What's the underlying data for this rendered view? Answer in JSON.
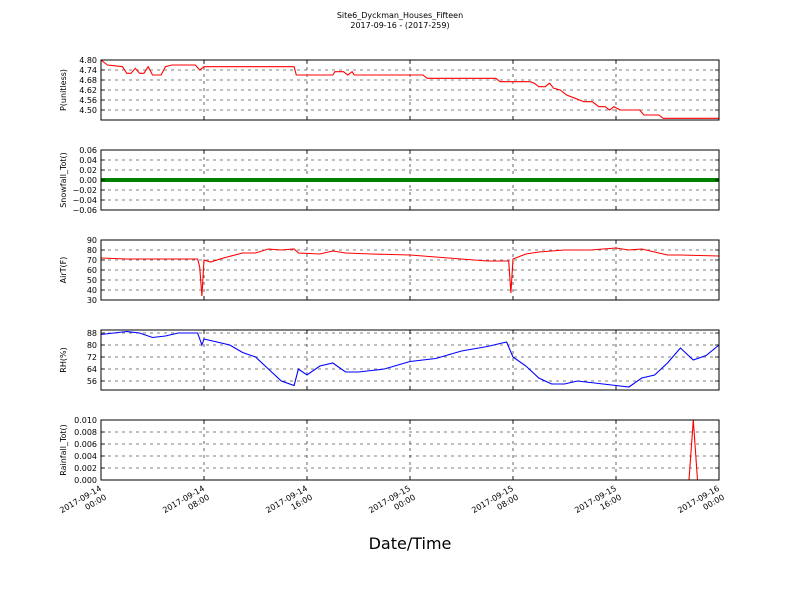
{
  "figure": {
    "title": "Site6_Dyckman_Houses_Fifteen",
    "subtitle": "2017-09-16 - (2017-259)",
    "xlabel": "Date/Time"
  },
  "chart_data": {
    "type": "line",
    "x_range": [
      "2017-09-14 00:00",
      "2017-09-16 00:00"
    ],
    "x_ticks": [
      {
        "t": "2017-09-14 00:00",
        "line1": "2017-09-14",
        "line2": "00:00"
      },
      {
        "t": "2017-09-14 08:00",
        "line1": "2017-09-14",
        "line2": "08:00"
      },
      {
        "t": "2017-09-14 16:00",
        "line1": "2017-09-14",
        "line2": "16:00"
      },
      {
        "t": "2017-09-15 00:00",
        "line1": "2017-09-15",
        "line2": "00:00"
      },
      {
        "t": "2017-09-15 08:00",
        "line1": "2017-09-15",
        "line2": "08:00"
      },
      {
        "t": "2017-09-15 16:00",
        "line1": "2017-09-15",
        "line2": "16:00"
      },
      {
        "t": "2017-09-16 00:00",
        "line1": "2017-09-16",
        "line2": "00:00"
      }
    ],
    "grid": true,
    "panels": [
      {
        "ylabel": "P(unitless)",
        "color": "#ff0000",
        "ylim": [
          4.44,
          4.8
        ],
        "yticks": [
          "4.80",
          "4.74",
          "4.68",
          "4.62",
          "4.56",
          "4.50"
        ],
        "ytick_values": [
          4.8,
          4.74,
          4.68,
          4.62,
          4.56,
          4.5
        ],
        "series": [
          {
            "x": "2017-09-14 00:00",
            "y": 4.8
          },
          {
            "x": "2017-09-14 00:30",
            "y": 4.77
          },
          {
            "x": "2017-09-14 01:40",
            "y": 4.76
          },
          {
            "x": "2017-09-14 02:00",
            "y": 4.72
          },
          {
            "x": "2017-09-14 02:20",
            "y": 4.72
          },
          {
            "x": "2017-09-14 02:40",
            "y": 4.75
          },
          {
            "x": "2017-09-14 03:00",
            "y": 4.72
          },
          {
            "x": "2017-09-14 03:20",
            "y": 4.72
          },
          {
            "x": "2017-09-14 03:40",
            "y": 4.76
          },
          {
            "x": "2017-09-14 04:00",
            "y": 4.71
          },
          {
            "x": "2017-09-14 04:40",
            "y": 4.71
          },
          {
            "x": "2017-09-14 05:00",
            "y": 4.76
          },
          {
            "x": "2017-09-14 05:30",
            "y": 4.77
          },
          {
            "x": "2017-09-14 07:20",
            "y": 4.77
          },
          {
            "x": "2017-09-14 07:40",
            "y": 4.74
          },
          {
            "x": "2017-09-14 08:00",
            "y": 4.76
          },
          {
            "x": "2017-09-14 10:00",
            "y": 4.76
          },
          {
            "x": "2017-09-14 11:00",
            "y": 4.76
          },
          {
            "x": "2017-09-14 13:00",
            "y": 4.76
          },
          {
            "x": "2017-09-14 15:00",
            "y": 4.76
          },
          {
            "x": "2017-09-14 15:10",
            "y": 4.71
          },
          {
            "x": "2017-09-14 18:00",
            "y": 4.71
          },
          {
            "x": "2017-09-14 18:10",
            "y": 4.73
          },
          {
            "x": "2017-09-14 18:50",
            "y": 4.73
          },
          {
            "x": "2017-09-14 19:10",
            "y": 4.71
          },
          {
            "x": "2017-09-14 19:30",
            "y": 4.73
          },
          {
            "x": "2017-09-14 19:40",
            "y": 4.71
          },
          {
            "x": "2017-09-15 01:00",
            "y": 4.71
          },
          {
            "x": "2017-09-15 01:20",
            "y": 4.69
          },
          {
            "x": "2017-09-15 06:40",
            "y": 4.69
          },
          {
            "x": "2017-09-15 07:00",
            "y": 4.67
          },
          {
            "x": "2017-09-15 09:20",
            "y": 4.67
          },
          {
            "x": "2017-09-15 09:40",
            "y": 4.66
          },
          {
            "x": "2017-09-15 10:00",
            "y": 4.64
          },
          {
            "x": "2017-09-15 10:30",
            "y": 4.64
          },
          {
            "x": "2017-09-15 10:50",
            "y": 4.66
          },
          {
            "x": "2017-09-15 11:10",
            "y": 4.63
          },
          {
            "x": "2017-09-15 11:40",
            "y": 4.62
          },
          {
            "x": "2017-09-15 12:10",
            "y": 4.59
          },
          {
            "x": "2017-09-15 12:50",
            "y": 4.57
          },
          {
            "x": "2017-09-15 13:30",
            "y": 4.55
          },
          {
            "x": "2017-09-15 14:10",
            "y": 4.55
          },
          {
            "x": "2017-09-15 14:40",
            "y": 4.52
          },
          {
            "x": "2017-09-15 15:10",
            "y": 4.52
          },
          {
            "x": "2017-09-15 15:30",
            "y": 4.5
          },
          {
            "x": "2017-09-15 15:50",
            "y": 4.52
          },
          {
            "x": "2017-09-15 16:20",
            "y": 4.5
          },
          {
            "x": "2017-09-15 17:50",
            "y": 4.5
          },
          {
            "x": "2017-09-15 18:10",
            "y": 4.47
          },
          {
            "x": "2017-09-15 19:20",
            "y": 4.47
          },
          {
            "x": "2017-09-15 19:40",
            "y": 4.45
          },
          {
            "x": "2017-09-16 00:00",
            "y": 4.45
          }
        ]
      },
      {
        "ylabel": "Snowfall_Tot()",
        "color": "#008000",
        "ylim": [
          -0.06,
          0.06
        ],
        "yticks": [
          "0.06",
          "0.04",
          "0.02",
          "0.00",
          "−0.02",
          "−0.04",
          "−0.06"
        ],
        "ytick_values": [
          0.06,
          0.04,
          0.02,
          0.0,
          -0.02,
          -0.04,
          -0.06
        ],
        "constant_value": 0.0,
        "series": [
          {
            "x": "2017-09-14 00:00",
            "y": 0.0
          },
          {
            "x": "2017-09-16 00:00",
            "y": 0.0
          }
        ]
      },
      {
        "ylabel": "AirT(F)",
        "color": "#ff0000",
        "ylim": [
          30,
          90
        ],
        "yticks": [
          "90",
          "80",
          "70",
          "60",
          "50",
          "40",
          "30"
        ],
        "ytick_values": [
          90,
          80,
          70,
          60,
          50,
          40,
          30
        ],
        "series": [
          {
            "x": "2017-09-14 00:00",
            "y": 72
          },
          {
            "x": "2017-09-14 02:00",
            "y": 71
          },
          {
            "x": "2017-09-14 06:00",
            "y": 71
          },
          {
            "x": "2017-09-14 07:30",
            "y": 71
          },
          {
            "x": "2017-09-14 07:40",
            "y": 63
          },
          {
            "x": "2017-09-14 07:50",
            "y": 34
          },
          {
            "x": "2017-09-14 08:00",
            "y": 70
          },
          {
            "x": "2017-09-14 08:30",
            "y": 68
          },
          {
            "x": "2017-09-14 09:30",
            "y": 72
          },
          {
            "x": "2017-09-14 11:00",
            "y": 77
          },
          {
            "x": "2017-09-14 12:00",
            "y": 77
          },
          {
            "x": "2017-09-14 13:00",
            "y": 81
          },
          {
            "x": "2017-09-14 14:00",
            "y": 80
          },
          {
            "x": "2017-09-14 15:00",
            "y": 81
          },
          {
            "x": "2017-09-14 15:20",
            "y": 77
          },
          {
            "x": "2017-09-14 17:00",
            "y": 76
          },
          {
            "x": "2017-09-14 18:00",
            "y": 79
          },
          {
            "x": "2017-09-14 19:00",
            "y": 77
          },
          {
            "x": "2017-09-14 21:00",
            "y": 76
          },
          {
            "x": "2017-09-15 00:00",
            "y": 75
          },
          {
            "x": "2017-09-15 03:00",
            "y": 72
          },
          {
            "x": "2017-09-15 06:00",
            "y": 69
          },
          {
            "x": "2017-09-15 07:40",
            "y": 69
          },
          {
            "x": "2017-09-15 07:50",
            "y": 37
          },
          {
            "x": "2017-09-15 08:00",
            "y": 71
          },
          {
            "x": "2017-09-15 09:00",
            "y": 76
          },
          {
            "x": "2017-09-15 10:00",
            "y": 78
          },
          {
            "x": "2017-09-15 12:00",
            "y": 80
          },
          {
            "x": "2017-09-15 14:00",
            "y": 80
          },
          {
            "x": "2017-09-15 16:00",
            "y": 82
          },
          {
            "x": "2017-09-15 17:00",
            "y": 80
          },
          {
            "x": "2017-09-15 18:00",
            "y": 81
          },
          {
            "x": "2017-09-15 19:00",
            "y": 78
          },
          {
            "x": "2017-09-15 20:00",
            "y": 75
          },
          {
            "x": "2017-09-15 21:00",
            "y": 75
          },
          {
            "x": "2017-09-16 00:00",
            "y": 74
          }
        ]
      },
      {
        "ylabel": "RH(%)",
        "color": "#0000ff",
        "ylim": [
          50,
          90
        ],
        "yticks": [
          "88",
          "80",
          "72",
          "64",
          "56"
        ],
        "ytick_values": [
          88,
          80,
          72,
          64,
          56
        ],
        "series": [
          {
            "x": "2017-09-14 00:00",
            "y": 87
          },
          {
            "x": "2017-09-14 01:00",
            "y": 88
          },
          {
            "x": "2017-09-14 02:00",
            "y": 89
          },
          {
            "x": "2017-09-14 03:00",
            "y": 88
          },
          {
            "x": "2017-09-14 04:00",
            "y": 85
          },
          {
            "x": "2017-09-14 05:00",
            "y": 86
          },
          {
            "x": "2017-09-14 06:00",
            "y": 88
          },
          {
            "x": "2017-09-14 07:30",
            "y": 88
          },
          {
            "x": "2017-09-14 07:50",
            "y": 80
          },
          {
            "x": "2017-09-14 08:00",
            "y": 84
          },
          {
            "x": "2017-09-14 10:00",
            "y": 80
          },
          {
            "x": "2017-09-14 11:00",
            "y": 75
          },
          {
            "x": "2017-09-14 12:00",
            "y": 72
          },
          {
            "x": "2017-09-14 13:00",
            "y": 64
          },
          {
            "x": "2017-09-14 14:00",
            "y": 56
          },
          {
            "x": "2017-09-14 15:00",
            "y": 53
          },
          {
            "x": "2017-09-14 15:20",
            "y": 64
          },
          {
            "x": "2017-09-14 16:00",
            "y": 60
          },
          {
            "x": "2017-09-14 17:00",
            "y": 66
          },
          {
            "x": "2017-09-14 18:00",
            "y": 68
          },
          {
            "x": "2017-09-14 19:00",
            "y": 62
          },
          {
            "x": "2017-09-14 20:00",
            "y": 62
          },
          {
            "x": "2017-09-14 21:00",
            "y": 63
          },
          {
            "x": "2017-09-14 22:00",
            "y": 64
          },
          {
            "x": "2017-09-15 00:00",
            "y": 69
          },
          {
            "x": "2017-09-15 02:00",
            "y": 71
          },
          {
            "x": "2017-09-15 04:00",
            "y": 76
          },
          {
            "x": "2017-09-15 06:00",
            "y": 79
          },
          {
            "x": "2017-09-15 07:30",
            "y": 82
          },
          {
            "x": "2017-09-15 08:00",
            "y": 72
          },
          {
            "x": "2017-09-15 09:00",
            "y": 66
          },
          {
            "x": "2017-09-15 10:00",
            "y": 58
          },
          {
            "x": "2017-09-15 11:00",
            "y": 54
          },
          {
            "x": "2017-09-15 12:00",
            "y": 54
          },
          {
            "x": "2017-09-15 13:00",
            "y": 56
          },
          {
            "x": "2017-09-15 14:00",
            "y": 55
          },
          {
            "x": "2017-09-15 15:00",
            "y": 54
          },
          {
            "x": "2017-09-15 16:00",
            "y": 53
          },
          {
            "x": "2017-09-15 17:00",
            "y": 52
          },
          {
            "x": "2017-09-15 18:00",
            "y": 58
          },
          {
            "x": "2017-09-15 19:00",
            "y": 60
          },
          {
            "x": "2017-09-15 20:00",
            "y": 68
          },
          {
            "x": "2017-09-15 21:00",
            "y": 78
          },
          {
            "x": "2017-09-15 22:00",
            "y": 70
          },
          {
            "x": "2017-09-15 23:00",
            "y": 73
          },
          {
            "x": "2017-09-16 00:00",
            "y": 80
          }
        ]
      },
      {
        "ylabel": "Rainfall_Tot()",
        "color": "#ff0000",
        "ylim": [
          0,
          0.01
        ],
        "yticks": [
          "0.010",
          "0.008",
          "0.006",
          "0.004",
          "0.002",
          "0.000"
        ],
        "ytick_values": [
          0.01,
          0.008,
          0.006,
          0.004,
          0.002,
          0.0
        ],
        "series": [
          {
            "x": "2017-09-14 00:00",
            "y": 0.0
          },
          {
            "x": "2017-09-15 21:40",
            "y": 0.0
          },
          {
            "x": "2017-09-15 22:00",
            "y": 0.01
          },
          {
            "x": "2017-09-15 22:20",
            "y": 0.0
          },
          {
            "x": "2017-09-16 00:00",
            "y": 0.0
          }
        ]
      }
    ]
  }
}
